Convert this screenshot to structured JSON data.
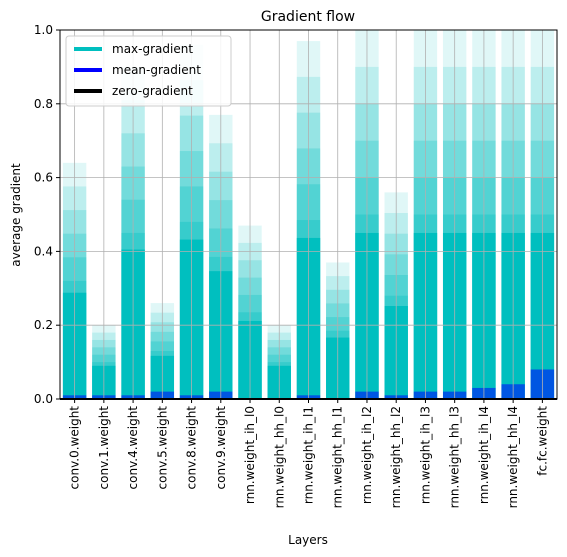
{
  "chart_data": {
    "type": "bar",
    "title": "Gradient flow",
    "xlabel": "Layers",
    "ylabel": "average gradient",
    "ylim": [
      0,
      1.0
    ],
    "yticks": [
      "0.0",
      "0.2",
      "0.4",
      "0.6",
      "0.8",
      "1.0"
    ],
    "grid": true,
    "legend_position": "top-left",
    "categories": [
      "conv.0.weight",
      "conv.1.weight",
      "conv.4.weight",
      "conv.5.weight",
      "conv.8.weight",
      "conv.9.weight",
      "rnn.weight_ih_l0",
      "rnn.weight_hh_l0",
      "rnn.weight_ih_l1",
      "rnn.weight_hh_l1",
      "rnn.weight_ih_l2",
      "rnn.weight_hh_l2",
      "rnn.weight_ih_l3",
      "rnn.weight_hh_l3",
      "rnn.weight_ih_l4",
      "rnn.weight_hh_l4",
      "fc.fc.weight"
    ],
    "series": [
      {
        "name": "max-gradient",
        "color": "#00bfbf",
        "values": [
          0.64,
          0.2,
          0.9,
          0.26,
          0.96,
          0.77,
          0.47,
          0.2,
          0.97,
          0.37,
          1.0,
          0.56,
          1.0,
          1.0,
          1.0,
          1.0,
          1.0
        ]
      },
      {
        "name": "mean-gradient",
        "color": "#0000ff",
        "values": [
          0.01,
          0.01,
          0.01,
          0.02,
          0.01,
          0.02,
          0.0,
          0.0,
          0.01,
          0.0,
          0.02,
          0.01,
          0.02,
          0.02,
          0.03,
          0.04,
          0.08
        ]
      },
      {
        "name": "zero-gradient",
        "color": "#000000",
        "values": [
          0,
          0,
          0,
          0,
          0,
          0,
          0,
          0,
          0,
          0,
          0,
          0,
          0,
          0,
          0,
          0,
          0
        ]
      }
    ]
  }
}
